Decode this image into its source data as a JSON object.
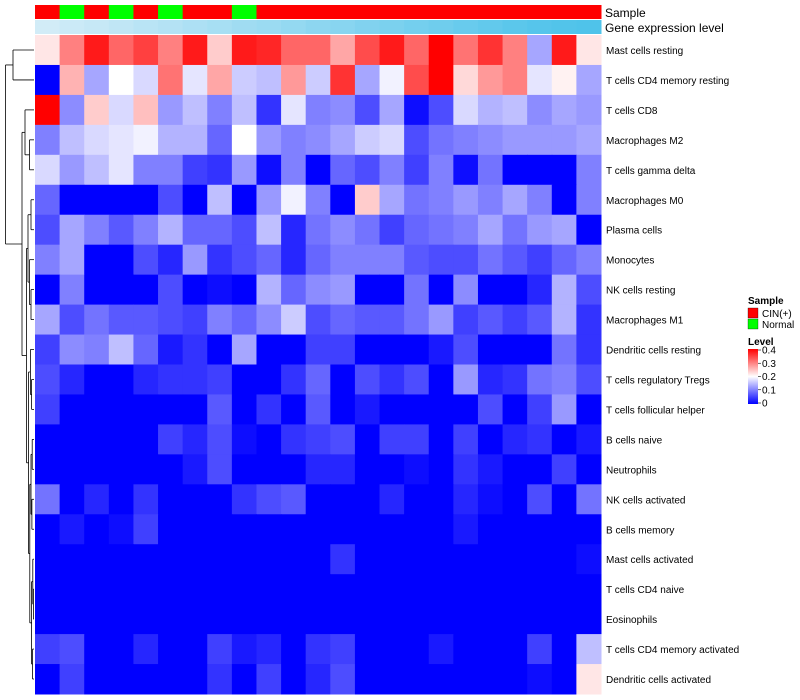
{
  "chart_data": {
    "type": "heatmap",
    "title": "",
    "annotation_tracks": [
      {
        "name": "Sample",
        "label": "Sample"
      },
      {
        "name": "Gene expression level",
        "label": "Gene expression level"
      }
    ],
    "sample_groups": [
      "CIN(+)",
      "Normal",
      "CIN(+)",
      "Normal",
      "CIN(+)",
      "Normal",
      "CIN(+)",
      "CIN(+)",
      "Normal",
      "CIN(+)",
      "CIN(+)",
      "CIN(+)",
      "CIN(+)",
      "CIN(+)",
      "CIN(+)",
      "CIN(+)",
      "CIN(+)",
      "CIN(+)",
      "CIN(+)",
      "CIN(+)",
      "CIN(+)",
      "CIN(+)",
      "CIN(+)"
    ],
    "expression_level": [
      0.05,
      0.1,
      0.14,
      0.18,
      0.23,
      0.27,
      0.32,
      0.36,
      0.41,
      0.45,
      0.5,
      0.55,
      0.59,
      0.64,
      0.68,
      0.73,
      0.77,
      0.82,
      0.86,
      0.91,
      0.95,
      0.98,
      1.0
    ],
    "rows": [
      "Mast cells resting",
      "T cells CD4 memory resting",
      "T cells CD8",
      "Macrophages M2",
      "T cells gamma delta",
      "Macrophages M0",
      "Plasma cells",
      "Monocytes",
      "NK cells resting",
      "Macrophages M1",
      "Dendritic cells resting",
      "T cells regulatory  Tregs",
      "T cells follicular helper",
      "B cells naive",
      "Neutrophils",
      "NK cells activated",
      "B cells memory",
      "Mast cells activated",
      "T cells CD4 naive",
      "Eosinophils",
      "T cells CD4 memory activated",
      "Dendritic cells activated"
    ],
    "values": [
      [
        0.22,
        0.3,
        0.38,
        0.32,
        0.35,
        0.3,
        0.38,
        0.24,
        0.38,
        0.37,
        0.32,
        0.32,
        0.27,
        0.34,
        0.38,
        0.32,
        0.4,
        0.31,
        0.36,
        0.3,
        0.13,
        0.38,
        0.22
      ],
      [
        0.0,
        0.26,
        0.13,
        0.2,
        0.17,
        0.31,
        0.18,
        0.27,
        0.16,
        0.15,
        0.28,
        0.16,
        0.36,
        0.13,
        0.19,
        0.34,
        0.4,
        0.23,
        0.28,
        0.3,
        0.18,
        0.21,
        0.13
      ],
      [
        0.4,
        0.11,
        0.24,
        0.17,
        0.25,
        0.12,
        0.15,
        0.1,
        0.15,
        0.04,
        0.18,
        0.1,
        0.11,
        0.06,
        0.13,
        0.01,
        0.06,
        0.17,
        0.14,
        0.15,
        0.11,
        0.13,
        0.12
      ],
      [
        0.1,
        0.15,
        0.17,
        0.18,
        0.19,
        0.14,
        0.14,
        0.08,
        0.2,
        0.12,
        0.1,
        0.11,
        0.13,
        0.16,
        0.17,
        0.06,
        0.09,
        0.1,
        0.11,
        0.12,
        0.12,
        0.12,
        0.13
      ],
      [
        0.17,
        0.12,
        0.15,
        0.18,
        0.1,
        0.1,
        0.05,
        0.04,
        0.12,
        0.01,
        0.1,
        0.0,
        0.08,
        0.06,
        0.1,
        0.05,
        0.1,
        0.01,
        0.09,
        0.0,
        0.0,
        0.0,
        0.1
      ],
      [
        0.08,
        0.0,
        0.0,
        0.0,
        0.0,
        0.06,
        0.0,
        0.15,
        0.0,
        0.12,
        0.19,
        0.1,
        0.0,
        0.24,
        0.13,
        0.09,
        0.1,
        0.12,
        0.1,
        0.13,
        0.1,
        0.0,
        0.1
      ],
      [
        0.06,
        0.13,
        0.1,
        0.07,
        0.1,
        0.14,
        0.08,
        0.08,
        0.06,
        0.15,
        0.03,
        0.09,
        0.11,
        0.09,
        0.05,
        0.08,
        0.09,
        0.1,
        0.13,
        0.09,
        0.12,
        0.13,
        0.0
      ],
      [
        0.1,
        0.13,
        0.0,
        0.0,
        0.06,
        0.03,
        0.12,
        0.04,
        0.06,
        0.08,
        0.03,
        0.08,
        0.1,
        0.1,
        0.1,
        0.07,
        0.06,
        0.06,
        0.09,
        0.07,
        0.05,
        0.08,
        0.1
      ],
      [
        0.0,
        0.1,
        0.0,
        0.0,
        0.0,
        0.06,
        0.0,
        0.01,
        0.0,
        0.14,
        0.08,
        0.11,
        0.12,
        0.0,
        0.0,
        0.09,
        0.0,
        0.11,
        0.0,
        0.0,
        0.03,
        0.14,
        0.06
      ],
      [
        0.13,
        0.06,
        0.09,
        0.07,
        0.07,
        0.06,
        0.05,
        0.1,
        0.08,
        0.11,
        0.16,
        0.06,
        0.08,
        0.07,
        0.07,
        0.09,
        0.12,
        0.05,
        0.07,
        0.05,
        0.07,
        0.14,
        0.04
      ],
      [
        0.05,
        0.11,
        0.1,
        0.15,
        0.08,
        0.02,
        0.04,
        0.0,
        0.13,
        0.0,
        0.0,
        0.05,
        0.05,
        0.0,
        0.0,
        0.0,
        0.02,
        0.06,
        0.0,
        0.0,
        0.0,
        0.09,
        0.04
      ],
      [
        0.06,
        0.03,
        0.0,
        0.0,
        0.03,
        0.04,
        0.04,
        0.05,
        0.0,
        0.0,
        0.04,
        0.08,
        0.0,
        0.06,
        0.04,
        0.06,
        0.0,
        0.12,
        0.03,
        0.04,
        0.09,
        0.1,
        0.06
      ],
      [
        0.05,
        0.0,
        0.0,
        0.0,
        0.0,
        0.0,
        0.0,
        0.07,
        0.0,
        0.04,
        0.0,
        0.07,
        0.0,
        0.02,
        0.0,
        0.0,
        0.0,
        0.0,
        0.06,
        0.0,
        0.05,
        0.12,
        0.0
      ],
      [
        0.0,
        0.0,
        0.0,
        0.0,
        0.0,
        0.05,
        0.03,
        0.06,
        0.01,
        0.0,
        0.04,
        0.05,
        0.06,
        0.0,
        0.05,
        0.05,
        0.0,
        0.05,
        0.0,
        0.03,
        0.04,
        0.0,
        0.02
      ],
      [
        0.0,
        0.0,
        0.0,
        0.0,
        0.0,
        0.0,
        0.02,
        0.06,
        0.0,
        0.0,
        0.0,
        0.03,
        0.03,
        0.0,
        0.0,
        0.01,
        0.0,
        0.04,
        0.02,
        0.0,
        0.0,
        0.05,
        0.0
      ],
      [
        0.09,
        0.0,
        0.03,
        0.0,
        0.04,
        0.0,
        0.0,
        0.0,
        0.04,
        0.06,
        0.07,
        0.0,
        0.0,
        0.0,
        0.03,
        0.0,
        0.0,
        0.03,
        0.01,
        0.0,
        0.06,
        0.0,
        0.09
      ],
      [
        0.0,
        0.02,
        0.0,
        0.01,
        0.05,
        0.0,
        0.0,
        0.0,
        0.0,
        0.0,
        0.0,
        0.0,
        0.0,
        0.0,
        0.0,
        0.0,
        0.0,
        0.02,
        0.0,
        0.0,
        0.0,
        0.0,
        0.0
      ],
      [
        0.0,
        0.0,
        0.0,
        0.0,
        0.0,
        0.0,
        0.0,
        0.0,
        0.0,
        0.0,
        0.0,
        0.0,
        0.04,
        0.0,
        0.0,
        0.0,
        0.0,
        0.0,
        0.0,
        0.0,
        0.0,
        0.0,
        0.01
      ],
      [
        0.0,
        0.0,
        0.0,
        0.0,
        0.0,
        0.0,
        0.0,
        0.0,
        0.0,
        0.0,
        0.0,
        0.0,
        0.0,
        0.0,
        0.0,
        0.0,
        0.0,
        0.0,
        0.0,
        0.0,
        0.0,
        0.0,
        0.0
      ],
      [
        0.0,
        0.0,
        0.0,
        0.0,
        0.0,
        0.0,
        0.0,
        0.0,
        0.0,
        0.0,
        0.0,
        0.0,
        0.0,
        0.0,
        0.0,
        0.0,
        0.0,
        0.0,
        0.0,
        0.0,
        0.0,
        0.0,
        0.0
      ],
      [
        0.05,
        0.06,
        0.0,
        0.0,
        0.03,
        0.0,
        0.0,
        0.05,
        0.02,
        0.03,
        0.0,
        0.04,
        0.05,
        0.0,
        0.0,
        0.0,
        0.02,
        0.0,
        0.0,
        0.0,
        0.05,
        0.0,
        0.15
      ],
      [
        0.0,
        0.05,
        0.0,
        0.0,
        0.0,
        0.0,
        0.0,
        0.04,
        0.0,
        0.05,
        0.0,
        0.03,
        0.06,
        0.0,
        0.0,
        0.0,
        0.0,
        0.0,
        0.0,
        0.0,
        0.01,
        0.0,
        0.22
      ]
    ],
    "color_scale": {
      "min": 0,
      "mid": 0.2,
      "max": 0.4,
      "low_color": "#0000ff",
      "mid_color": "#ffffff",
      "high_color": "#ff0000"
    },
    "legend": {
      "sample_title": "Sample",
      "sample_items": [
        {
          "label": "CIN(+)",
          "color": "#ff0000"
        },
        {
          "label": "Normal",
          "color": "#00ff00"
        }
      ],
      "level_title": "Level",
      "level_ticks": [
        "0.4",
        "0.3",
        "0.2",
        "0.1",
        "0"
      ],
      "level_tick_values": [
        0.4,
        0.3,
        0.2,
        0.1,
        0
      ]
    },
    "expression_colors": {
      "low": "#d9eef8",
      "high": "#4fc3ea"
    },
    "group_colors": {
      "CIN(+)": "#ff0000",
      "Normal": "#00ff00"
    }
  }
}
